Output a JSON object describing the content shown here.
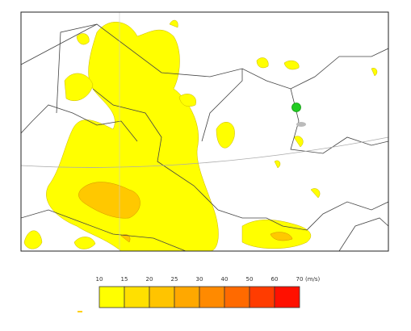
{
  "legend": {
    "labels": [
      10,
      15,
      20,
      25,
      30,
      40,
      50,
      60,
      70
    ],
    "unit": "(m/s)",
    "colors": [
      "#ffff00",
      "#ffe000",
      "#ffc400",
      "#ffa800",
      "#ff8a00",
      "#ff6a00",
      "#ff3c00",
      "#ff1000"
    ]
  }
}
